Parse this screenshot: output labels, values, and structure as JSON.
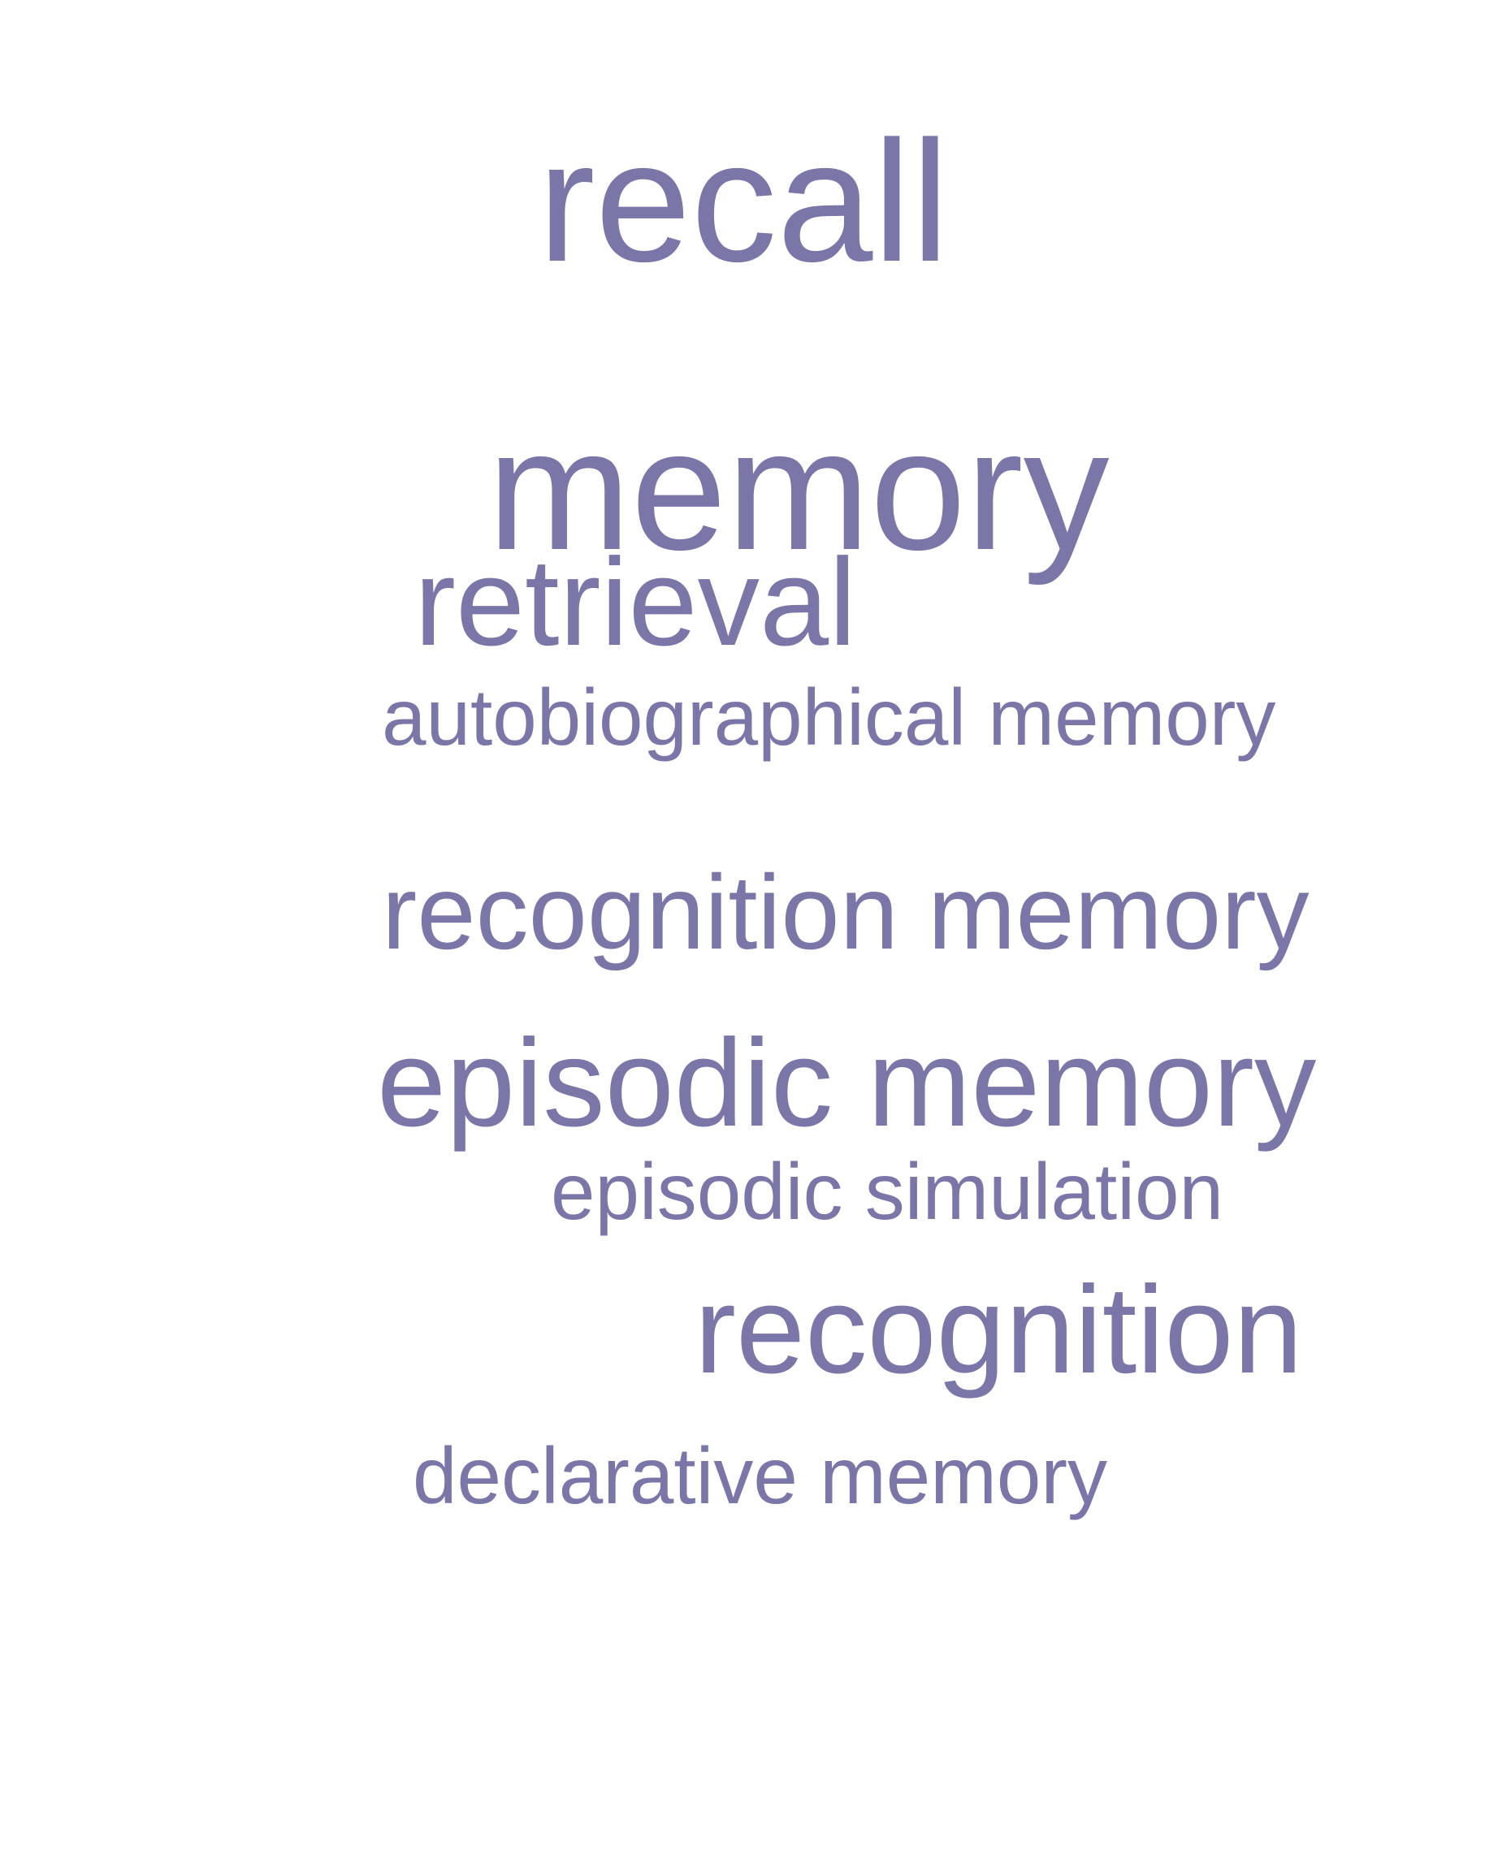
{
  "word_cloud": {
    "color": "#7b76a8",
    "words": [
      {
        "id": "recall",
        "text": "recall"
      },
      {
        "id": "memory",
        "text": "memory"
      },
      {
        "id": "retrieval",
        "text": "retrieval"
      },
      {
        "id": "autobiographical",
        "text": "autobiographical memory"
      },
      {
        "id": "recognition-memory",
        "text": "recognition memory"
      },
      {
        "id": "episodic-memory",
        "text": "episodic memory"
      },
      {
        "id": "episodic-simulation",
        "text": "episodic simulation"
      },
      {
        "id": "recognition",
        "text": "recognition"
      },
      {
        "id": "declarative",
        "text": "declarative memory"
      }
    ]
  }
}
